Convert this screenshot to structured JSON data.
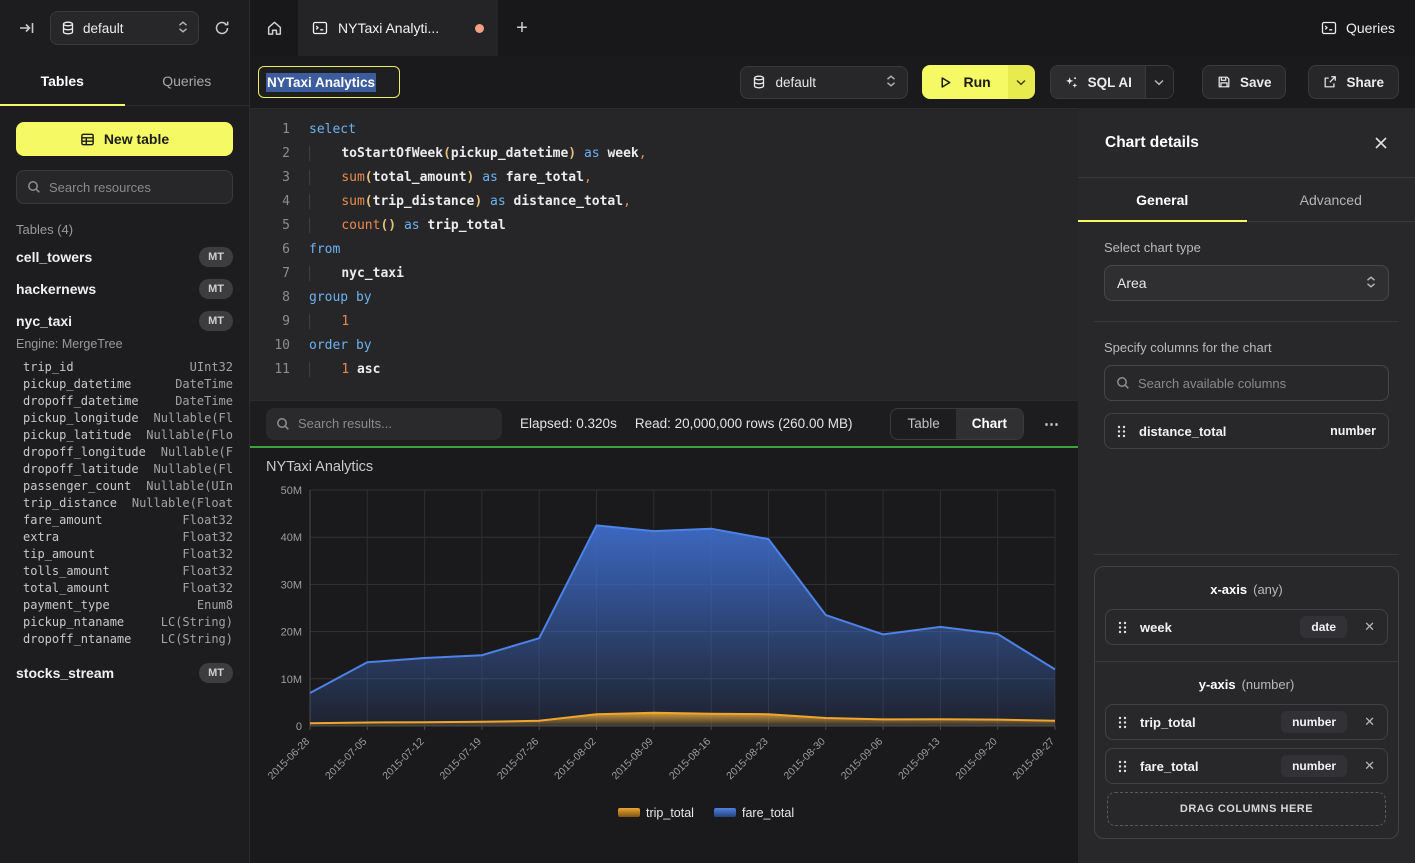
{
  "topbar": {
    "database": "default",
    "tab_title": "NYTaxi Analyti...",
    "plus": "+",
    "queries_label": "Queries"
  },
  "icons": {
    "sidebar-collapse": "arrow-to-bar",
    "database": "cylinder",
    "refresh": "circular-arrow",
    "home": "house",
    "terminal": "console-window",
    "search": "magnifier",
    "play": "triangle",
    "chevron-down": "v",
    "updown": "double-chevron",
    "sparkles": "sql-ai-stars",
    "save": "floppy",
    "share": "box-arrow",
    "close": "✕",
    "ellipsis": "⋯",
    "drag-handle": "six-dots",
    "table": "grid",
    "plus": "+"
  },
  "sidebar": {
    "tabs": [
      {
        "label": "Tables",
        "active": true
      },
      {
        "label": "Queries",
        "active": false
      }
    ],
    "new_table_label": "New table",
    "search_placeholder": "Search resources",
    "section_label": "Tables (4)",
    "tables": [
      {
        "name": "cell_towers",
        "badge": "MT"
      },
      {
        "name": "hackernews",
        "badge": "MT"
      },
      {
        "name": "nyc_taxi",
        "badge": "MT",
        "expanded": true,
        "engine": "Engine: MergeTree",
        "columns": [
          [
            "trip_id",
            "UInt32"
          ],
          [
            "pickup_datetime",
            "DateTime"
          ],
          [
            "dropoff_datetime",
            "DateTime"
          ],
          [
            "pickup_longitude",
            "Nullable(Fl"
          ],
          [
            "pickup_latitude",
            "Nullable(Flo"
          ],
          [
            "dropoff_longitude",
            "Nullable(F"
          ],
          [
            "dropoff_latitude",
            "Nullable(Fl"
          ],
          [
            "passenger_count",
            "Nullable(UIn"
          ],
          [
            "trip_distance",
            "Nullable(Float"
          ],
          [
            "fare_amount",
            "Float32"
          ],
          [
            "extra",
            "Float32"
          ],
          [
            "tip_amount",
            "Float32"
          ],
          [
            "tolls_amount",
            "Float32"
          ],
          [
            "total_amount",
            "Float32"
          ],
          [
            "payment_type",
            "Enum8"
          ],
          [
            "pickup_ntaname",
            "LC(String)"
          ],
          [
            "dropoff_ntaname",
            "LC(String)"
          ]
        ]
      },
      {
        "name": "stocks_stream",
        "badge": "MT"
      }
    ]
  },
  "query_header": {
    "title": "NYTaxi Analytics",
    "database": "default",
    "run_label": "Run",
    "sql_ai_label": "SQL AI",
    "save_label": "Save",
    "share_label": "Share"
  },
  "editor": {
    "lines": [
      {
        "n": "1",
        "toks": [
          [
            "select",
            "kw"
          ]
        ]
      },
      {
        "n": "2",
        "toks": [
          [
            "    ",
            "ind"
          ],
          [
            "toStartOfWeek",
            "id"
          ],
          [
            "(",
            "pr"
          ],
          [
            "pickup_datetime",
            "id"
          ],
          [
            ")",
            "pr"
          ],
          [
            " ",
            "pl"
          ],
          [
            "as",
            "kw"
          ],
          [
            " ",
            "pl"
          ],
          [
            "week",
            "id"
          ],
          [
            ",",
            "op"
          ]
        ]
      },
      {
        "n": "3",
        "toks": [
          [
            "    ",
            "ind"
          ],
          [
            "sum",
            "fn"
          ],
          [
            "(",
            "pr"
          ],
          [
            "total_amount",
            "id"
          ],
          [
            ")",
            "pr"
          ],
          [
            " ",
            "pl"
          ],
          [
            "as",
            "kw"
          ],
          [
            " ",
            "pl"
          ],
          [
            "fare_total",
            "id"
          ],
          [
            ",",
            "op"
          ]
        ]
      },
      {
        "n": "4",
        "toks": [
          [
            "    ",
            "ind"
          ],
          [
            "sum",
            "fn"
          ],
          [
            "(",
            "pr"
          ],
          [
            "trip_distance",
            "id"
          ],
          [
            ")",
            "pr"
          ],
          [
            " ",
            "pl"
          ],
          [
            "as",
            "kw"
          ],
          [
            " ",
            "pl"
          ],
          [
            "distance_total",
            "id"
          ],
          [
            ",",
            "op"
          ]
        ]
      },
      {
        "n": "5",
        "toks": [
          [
            "    ",
            "ind"
          ],
          [
            "count",
            "fn"
          ],
          [
            "()",
            "pr"
          ],
          [
            " ",
            "pl"
          ],
          [
            "as",
            "kw"
          ],
          [
            " ",
            "pl"
          ],
          [
            "trip_total",
            "id"
          ]
        ]
      },
      {
        "n": "6",
        "toks": [
          [
            "from",
            "kw"
          ]
        ]
      },
      {
        "n": "7",
        "toks": [
          [
            "    ",
            "ind"
          ],
          [
            "nyc_taxi",
            "id"
          ]
        ]
      },
      {
        "n": "8",
        "toks": [
          [
            "group by",
            "kw"
          ]
        ]
      },
      {
        "n": "9",
        "toks": [
          [
            "    ",
            "ind"
          ],
          [
            "1",
            "num"
          ]
        ]
      },
      {
        "n": "10",
        "toks": [
          [
            "order by",
            "kw"
          ]
        ]
      },
      {
        "n": "11",
        "toks": [
          [
            "    ",
            "ind"
          ],
          [
            "1",
            "num"
          ],
          [
            " ",
            "pl"
          ],
          [
            "asc",
            "id"
          ]
        ]
      }
    ]
  },
  "results_bar": {
    "search_placeholder": "Search results...",
    "elapsed": "Elapsed: 0.320s",
    "read": "Read: 20,000,000 rows (260.00 MB)",
    "toggle": [
      {
        "label": "Table",
        "active": false
      },
      {
        "label": "Chart",
        "active": true
      }
    ],
    "more": "⋯"
  },
  "chart_data": {
    "type": "area",
    "title": "NYTaxi Analytics",
    "x": [
      "2015-06-28",
      "2015-07-05",
      "2015-07-12",
      "2015-07-19",
      "2015-07-26",
      "2015-08-02",
      "2015-08-09",
      "2015-08-16",
      "2015-08-23",
      "2015-08-30",
      "2015-09-06",
      "2015-09-13",
      "2015-09-20",
      "2015-09-27"
    ],
    "series": [
      {
        "name": "trip_total",
        "color": "#F0A62E",
        "values_millions": [
          0.6,
          0.75,
          0.8,
          0.9,
          1.1,
          2.5,
          2.8,
          2.6,
          2.5,
          1.7,
          1.4,
          1.45,
          1.35,
          1.1
        ]
      },
      {
        "name": "fare_total",
        "color": "#4E82E6",
        "values_millions": [
          7,
          13.5,
          14.4,
          15,
          18.6,
          42.5,
          41.3,
          41.8,
          39.6,
          23.5,
          19.4,
          21,
          19.5,
          12
        ]
      }
    ],
    "ylim_millions": [
      0,
      50
    ],
    "yticks": [
      "0",
      "10M",
      "20M",
      "30M",
      "40M",
      "50M"
    ],
    "grid": true,
    "legend_position": "bottom"
  },
  "chart_panel": {
    "title": "Chart details",
    "close": "✕",
    "tabs": [
      {
        "label": "General",
        "active": true
      },
      {
        "label": "Advanced",
        "active": false
      }
    ],
    "chart_type_label": "Select chart type",
    "chart_type_value": "Area",
    "columns_label": "Specify columns for the chart",
    "search_placeholder": "Search available columns",
    "available": [
      {
        "name": "distance_total",
        "type": "number"
      }
    ],
    "x_axis": {
      "label": "x-axis",
      "hint": "(any)",
      "items": [
        {
          "name": "week",
          "type": "date"
        }
      ]
    },
    "y_axis": {
      "label": "y-axis",
      "hint": "(number)",
      "items": [
        {
          "name": "trip_total",
          "type": "number"
        },
        {
          "name": "fare_total",
          "type": "number"
        }
      ]
    },
    "drop_label": "DRAG COLUMNS HERE"
  }
}
